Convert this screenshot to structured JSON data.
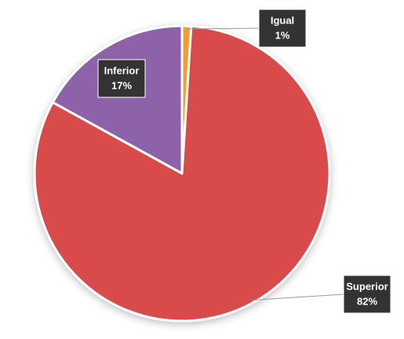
{
  "chart_data": {
    "type": "pie",
    "categories": [
      "Igual",
      "Superior",
      "Inferior"
    ],
    "values": [
      1,
      82,
      17
    ],
    "value_labels": [
      "1%",
      "82%",
      "17%"
    ],
    "colors": [
      "#f0a030",
      "#d94b4b",
      "#8e62a8"
    ]
  }
}
